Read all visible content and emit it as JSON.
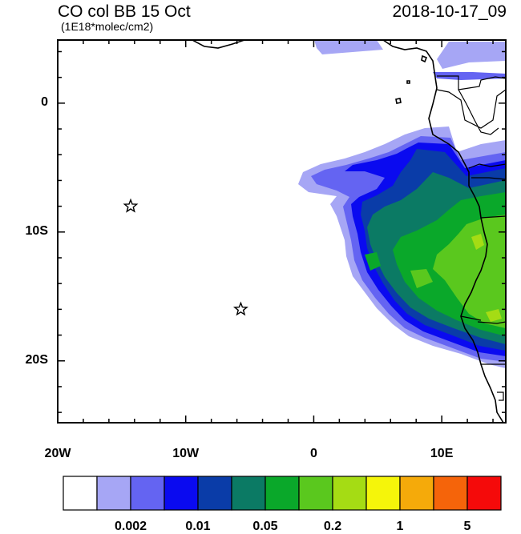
{
  "header": {
    "title": "CO col BB 15 Oct",
    "units": "(1E18*molec/cm2)",
    "datetime": "2018-10-17_09"
  },
  "axes": {
    "lat_labels": [
      {
        "label": "0",
        "lat": 0
      },
      {
        "label": "10S",
        "lat": -10
      },
      {
        "label": "20S",
        "lat": -20
      }
    ],
    "lon_labels": [
      {
        "label": "20W",
        "lon": -20
      },
      {
        "label": "10W",
        "lon": -10
      },
      {
        "label": "0",
        "lon": 0
      },
      {
        "label": "10E",
        "lon": 10
      }
    ],
    "lon_range": [
      -20,
      15
    ],
    "lat_range": [
      -24.8,
      4.9
    ]
  },
  "markers": [
    {
      "name": "star-1",
      "lon": -14.3,
      "lat": -8.0
    },
    {
      "name": "star-2",
      "lon": -5.7,
      "lat": -16.0
    }
  ],
  "colorbar": {
    "colors": [
      "#ffffff",
      "#a6a6f5",
      "#6464f2",
      "#0a0af0",
      "#0a3ca8",
      "#0b7a64",
      "#0aa82a",
      "#5ac81e",
      "#a5dc14",
      "#f5f50a",
      "#f5aa0a",
      "#f5640a",
      "#f50a0a"
    ],
    "labels": [
      "0.002",
      "0.01",
      "0.05",
      "0.2",
      "1",
      "5"
    ]
  }
}
